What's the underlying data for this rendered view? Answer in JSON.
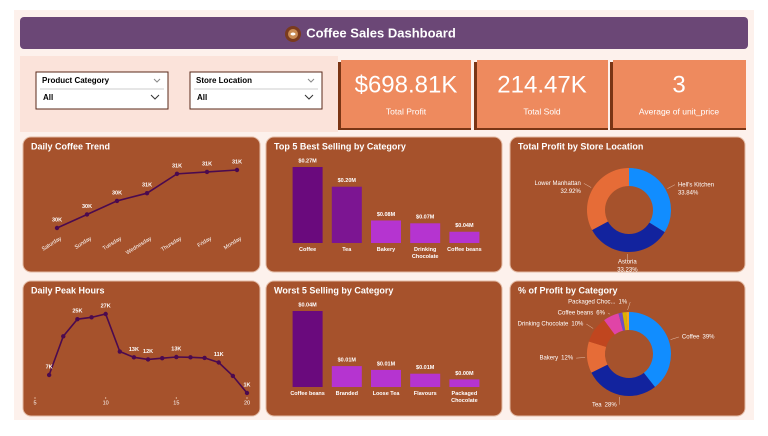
{
  "header": {
    "title": "Coffee Sales Dashboard"
  },
  "filters": [
    {
      "label": "Product Category",
      "value": "All"
    },
    {
      "label": "Store Location",
      "value": "All"
    }
  ],
  "kpis": [
    {
      "value": "$698.81K",
      "label": "Total Profit"
    },
    {
      "value": "214.47K",
      "label": "Total Sold"
    },
    {
      "value": "3",
      "label": "Average of unit_price"
    }
  ],
  "chart_data": [
    {
      "type": "line",
      "title": "Daily Coffee Trend",
      "categories": [
        "Saturday",
        "Sunday",
        "Tuesday",
        "Wednesday",
        "Thursday",
        "Friday",
        "Monday"
      ],
      "values": [
        29600,
        29950,
        30300,
        30500,
        31000,
        31050,
        31100
      ],
      "value_labels": [
        "30K",
        "30K",
        "30K",
        "31K",
        "31K",
        "31K",
        "31K"
      ],
      "color": "#4b0a4f"
    },
    {
      "type": "bar",
      "title": "Top 5 Best Selling by Category",
      "categories": [
        "Coffee",
        "Tea",
        "Bakery",
        "Drinking Chocolate",
        "Coffee beans"
      ],
      "values": [
        0.27,
        0.2,
        0.08,
        0.07,
        0.04
      ],
      "value_labels": [
        "$0.27M",
        "$0.20M",
        "$0.08M",
        "$0.07M",
        "$0.04M"
      ],
      "colors": [
        "#6a0a7d",
        "#7c1592",
        "#b534d0",
        "#b534d0",
        "#b534d0"
      ]
    },
    {
      "type": "pie",
      "title": "Total Profit by Store Location",
      "categories": [
        "Hell's Kitchen",
        "Astoria",
        "Lower Manhattan"
      ],
      "values": [
        33.84,
        33.23,
        32.92
      ],
      "value_labels": [
        "33.84%",
        "33.23%",
        "32.92%"
      ],
      "colors": [
        "#118dff",
        "#12239e",
        "#e66c37"
      ]
    },
    {
      "type": "line",
      "title": "Daily Peak Hours",
      "x": [
        6,
        7,
        8,
        9,
        10,
        11,
        12,
        13,
        14,
        15,
        16,
        17,
        18,
        19,
        20
      ],
      "values": [
        7100,
        19800,
        25400,
        26000,
        27100,
        14800,
        12900,
        12200,
        12600,
        13000,
        12900,
        12700,
        11200,
        6800,
        1200
      ],
      "value_labels": [
        "7K",
        null,
        "25K",
        null,
        "27K",
        null,
        "13K",
        "12K",
        null,
        "13K",
        null,
        null,
        "11K",
        null,
        "1K"
      ],
      "xlim": [
        5,
        20
      ],
      "xticks": [
        5,
        10,
        15,
        20
      ],
      "color": "#4b0a4f"
    },
    {
      "type": "bar",
      "title": "Worst 5 Selling by Category",
      "categories": [
        "Coffee beans",
        "Branded",
        "Loose Tea",
        "Flavours",
        "Packaged Chocolate"
      ],
      "values": [
        0.04,
        0.011,
        0.009,
        0.007,
        0.004
      ],
      "value_labels": [
        "$0.04M",
        "$0.01M",
        "$0.01M",
        "$0.01M",
        "$0.00M"
      ],
      "colors": [
        "#6a0a7d",
        "#b534d0",
        "#b534d0",
        "#b534d0",
        "#b534d0"
      ]
    },
    {
      "type": "pie",
      "title": "% of Profit by Category",
      "categories": [
        "Coffee",
        "Tea",
        "Bakery",
        "Drinking Chocolate",
        "Coffee beans",
        null,
        null,
        "Packaged Choc..."
      ],
      "values": [
        39,
        28,
        12,
        10,
        6,
        1.5,
        1.5,
        1
      ],
      "value_labels": [
        "39%",
        "28%",
        "12%",
        "10%",
        "6%",
        null,
        null,
        "1%"
      ],
      "colors": [
        "#118dff",
        "#12239e",
        "#e66c37",
        "#c0461f",
        "#e044a7",
        "#744ec2",
        "#d9b300",
        "#f5a623"
      ]
    }
  ]
}
